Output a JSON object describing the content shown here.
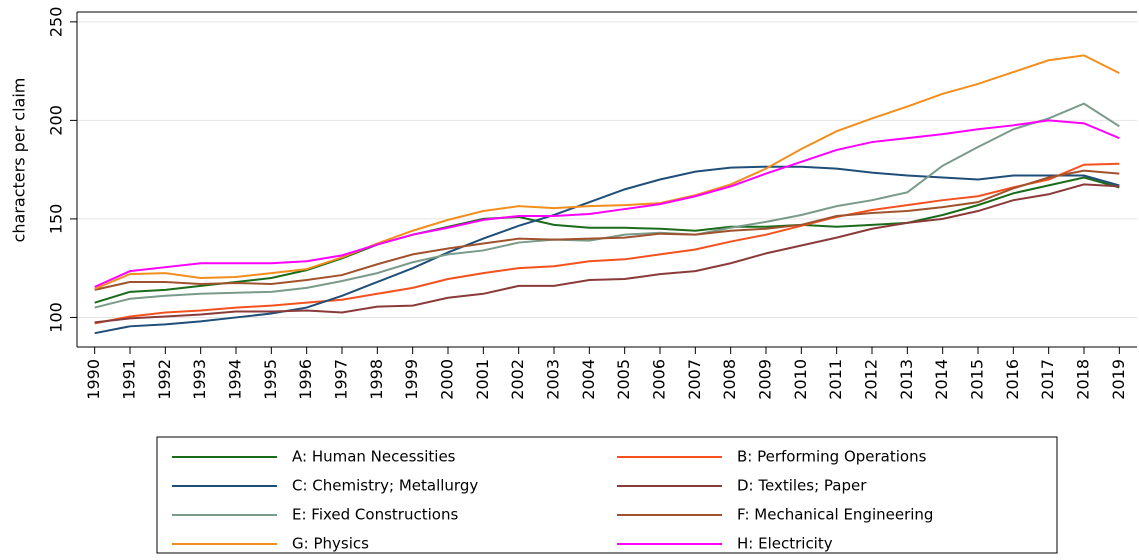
{
  "chart_data": {
    "type": "line",
    "y_label": "characters per claim",
    "x": [
      1990,
      1991,
      1992,
      1993,
      1994,
      1995,
      1996,
      1997,
      1998,
      1999,
      2000,
      2001,
      2002,
      2003,
      2004,
      2005,
      2006,
      2007,
      2008,
      2009,
      2010,
      2011,
      2012,
      2013,
      2014,
      2015,
      2016,
      2017,
      2018,
      2019
    ],
    "xlim": [
      1989.5,
      2019.5
    ],
    "xticks": [
      1990,
      1991,
      1992,
      1993,
      1994,
      1995,
      1996,
      1997,
      1998,
      1999,
      2000,
      2001,
      2002,
      2003,
      2004,
      2005,
      2006,
      2007,
      2008,
      2009,
      2010,
      2011,
      2012,
      2013,
      2014,
      2015,
      2016,
      2017,
      2018,
      2019
    ],
    "ylim": [
      85,
      255
    ],
    "yticks": [
      100,
      150,
      200,
      250
    ],
    "grid": true,
    "legend": "bottom",
    "series": [
      {
        "name": "A: Human Necessities",
        "color": "#1a6b1a",
        "values": [
          107.5,
          113,
          114,
          116,
          118,
          120,
          124,
          130,
          137,
          142,
          146,
          150,
          151,
          147,
          145.5,
          145.5,
          145,
          144,
          146,
          146,
          147,
          146,
          147,
          148,
          152,
          157,
          163,
          167,
          171,
          166
        ]
      },
      {
        "name": "B: Performing Operations",
        "color": "#f4511e",
        "values": [
          97,
          100.5,
          102.5,
          103.5,
          105,
          106,
          107.5,
          109,
          112,
          115,
          119.5,
          122.5,
          125,
          126,
          128.5,
          129.5,
          132,
          134.5,
          138.5,
          142,
          146.5,
          151,
          154.5,
          157,
          159.5,
          161.5,
          166,
          170,
          177.5,
          178
        ]
      },
      {
        "name": "C: Chemistry; Metallurgy",
        "color": "#1f4e79",
        "values": [
          92,
          95.5,
          96.5,
          98,
          100,
          102,
          105,
          111,
          118,
          125,
          133,
          140,
          146.5,
          152,
          158.5,
          165,
          170,
          174,
          176,
          176.5,
          176.5,
          175.5,
          173.5,
          172,
          171,
          170,
          172,
          172,
          172,
          167
        ]
      },
      {
        "name": "D: Textiles; Paper",
        "color": "#8b3a3a",
        "values": [
          97.5,
          99.5,
          100.5,
          101.5,
          103,
          103,
          103.5,
          102.5,
          105.5,
          106,
          110,
          112,
          116,
          116,
          119,
          119.5,
          122,
          123.5,
          127.5,
          132.5,
          136.5,
          140.5,
          145,
          148,
          150,
          154,
          159.5,
          162.5,
          167.5,
          166.5
        ]
      },
      {
        "name": "E: Fixed Constructions",
        "color": "#7a9a8a",
        "values": [
          105,
          109.5,
          111,
          112,
          112.5,
          113,
          115,
          118.5,
          122.5,
          128,
          132,
          134,
          138,
          139.5,
          139,
          142,
          143,
          142,
          145.5,
          148.5,
          152,
          156.5,
          159.5,
          163.5,
          177,
          186.5,
          195.5,
          201,
          208.5,
          197
        ]
      },
      {
        "name": "F: Mechanical Engineering",
        "color": "#a0522d",
        "values": [
          114,
          118,
          118,
          117,
          117.5,
          117,
          119,
          121.5,
          127,
          132,
          135,
          137.5,
          140,
          139.5,
          140,
          140.5,
          142.5,
          142,
          144,
          145,
          147,
          151.5,
          153,
          154,
          156,
          158.5,
          165.5,
          171,
          174.5,
          173
        ]
      },
      {
        "name": "G: Physics",
        "color": "#f28e1c",
        "values": [
          114.5,
          122,
          122.5,
          120,
          120.5,
          122.5,
          124.5,
          130.5,
          137.5,
          144,
          149.5,
          154,
          156.5,
          155.5,
          156.5,
          157,
          158,
          162,
          167.5,
          175.5,
          185.5,
          194.5,
          201,
          207,
          213.5,
          218.5,
          224.5,
          230.5,
          233,
          224
        ]
      },
      {
        "name": "H: Electricity",
        "color": "#ff00ff",
        "values": [
          115.5,
          123.5,
          125.5,
          127.5,
          127.5,
          127.5,
          128.5,
          131.5,
          137,
          142,
          145.5,
          149.5,
          151.5,
          151.5,
          152.5,
          155,
          157.5,
          161.5,
          166.5,
          173,
          179,
          185,
          189,
          191,
          193,
          195.5,
          197.5,
          200,
          198.5,
          191
        ]
      }
    ]
  }
}
